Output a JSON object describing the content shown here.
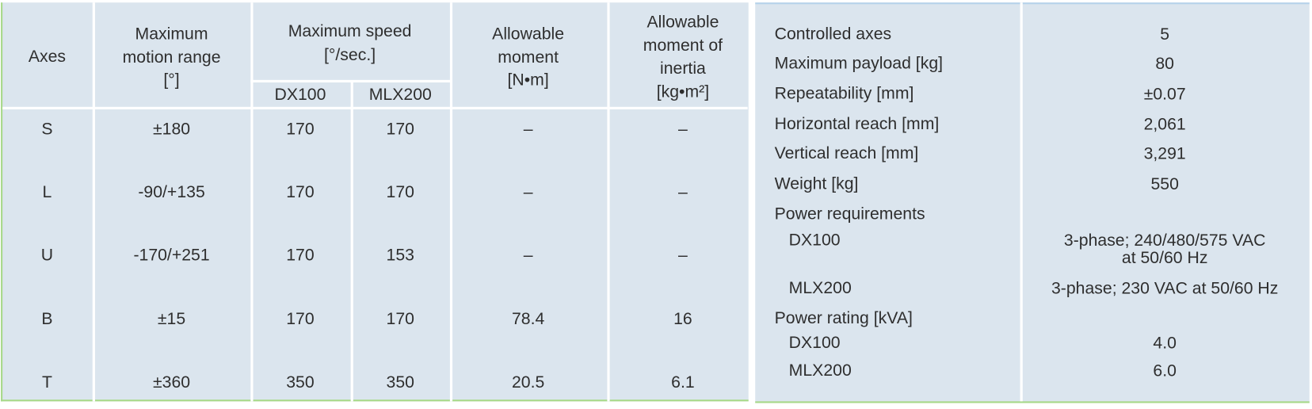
{
  "left_table": {
    "headers": {
      "axes": [
        "Axes"
      ],
      "motion_range": [
        "Maximum",
        "motion range",
        "[°]"
      ],
      "speed": [
        "Maximum speed",
        "[°/sec.]"
      ],
      "speed_dx": [
        "DX100"
      ],
      "speed_mlx": [
        "MLX200"
      ],
      "moment": [
        "Allowable",
        "moment",
        "[N•m]"
      ],
      "inertia": [
        "Allowable",
        "moment of",
        "inertia",
        "[kg•m²]"
      ]
    },
    "rows": [
      [
        "S",
        "±180",
        "170",
        "170",
        "–",
        "–"
      ],
      [
        "L",
        "-90/+135",
        "170",
        "170",
        "–",
        "–"
      ],
      [
        "U",
        "-170/+251",
        "170",
        "153",
        "–",
        "–"
      ],
      [
        "B",
        "±15",
        "170",
        "170",
        "78.4",
        "16"
      ],
      [
        "T",
        "±360",
        "350",
        "350",
        "20.5",
        "6.1"
      ]
    ]
  },
  "spec_table": {
    "rows": [
      {
        "label": "Controlled axes",
        "value": [
          "5"
        ]
      },
      {
        "label": "Maximum payload [kg]",
        "value": [
          "80"
        ]
      },
      {
        "label": "Repeatability [mm]",
        "value": [
          "±0.07"
        ]
      },
      {
        "label": "Horizontal reach [mm]",
        "value": [
          "2,061"
        ]
      },
      {
        "label": "Vertical reach [mm]",
        "value": [
          "3,291"
        ]
      },
      {
        "label": "Weight [kg]",
        "value": [
          "550"
        ]
      },
      {
        "label": "Power requirements"
      },
      {
        "label": "DX100",
        "indent": true,
        "value": [
          "3-phase; 240/480/575 VAC",
          "at 50/60 Hz"
        ]
      },
      {
        "label": "MLX200",
        "indent": true,
        "value": [
          "3-phase; 230 VAC at 50/60 Hz"
        ]
      },
      {
        "label": "Power rating [kVA]"
      },
      {
        "label": "DX100",
        "indent": true,
        "value": [
          "4.0"
        ]
      },
      {
        "label": "MLX200",
        "indent": true,
        "value": [
          "6.0"
        ]
      }
    ]
  }
}
